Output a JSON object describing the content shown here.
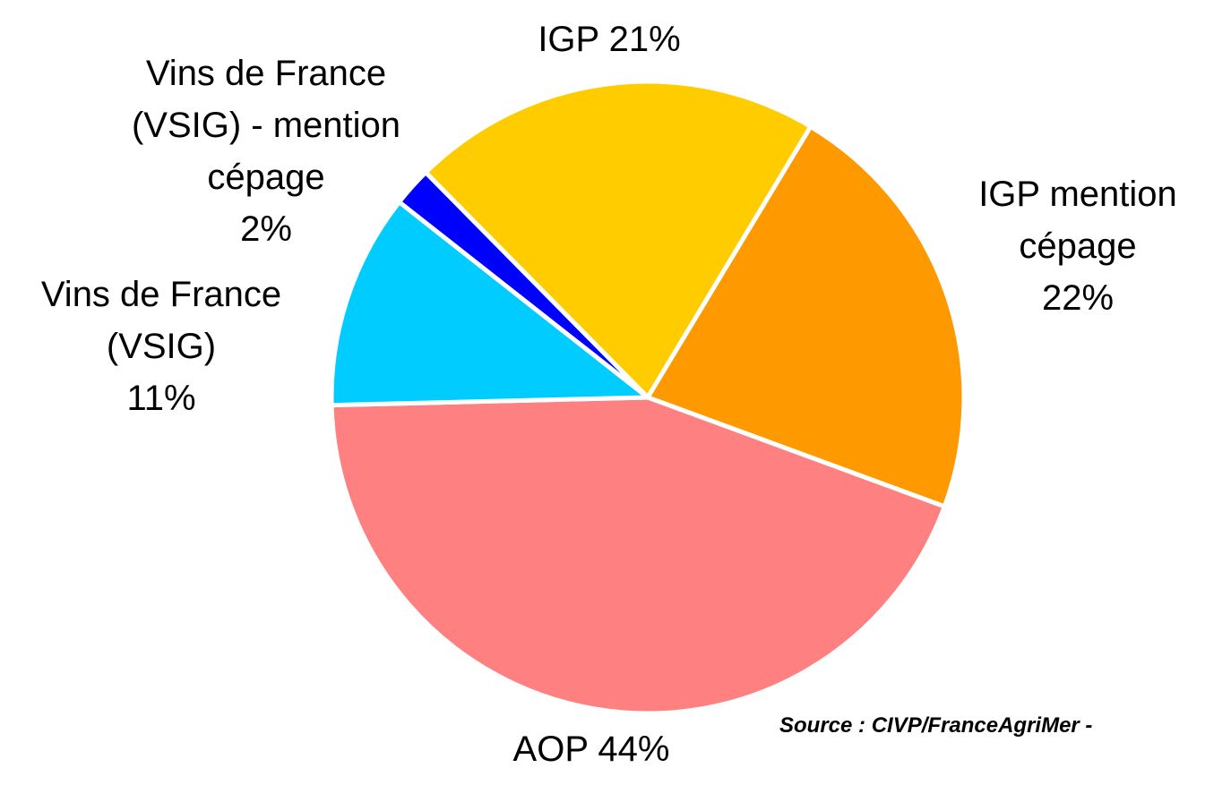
{
  "chart_data": {
    "type": "pie",
    "categories": [
      "IGP",
      "IGP mention cépage",
      "AOP",
      "Vins de France (VSIG)",
      "Vins de France (VSIG) - mention cépage"
    ],
    "values": [
      21,
      22,
      44,
      11,
      2
    ],
    "value_labels": [
      "21%",
      "22%",
      "44%",
      "11%",
      "2%"
    ],
    "colors": [
      "#ffcc00",
      "#ff9900",
      "#ff8080",
      "#00ccff",
      "#0000ff"
    ],
    "source": "Source : CIVP/FranceAgriMer -"
  }
}
